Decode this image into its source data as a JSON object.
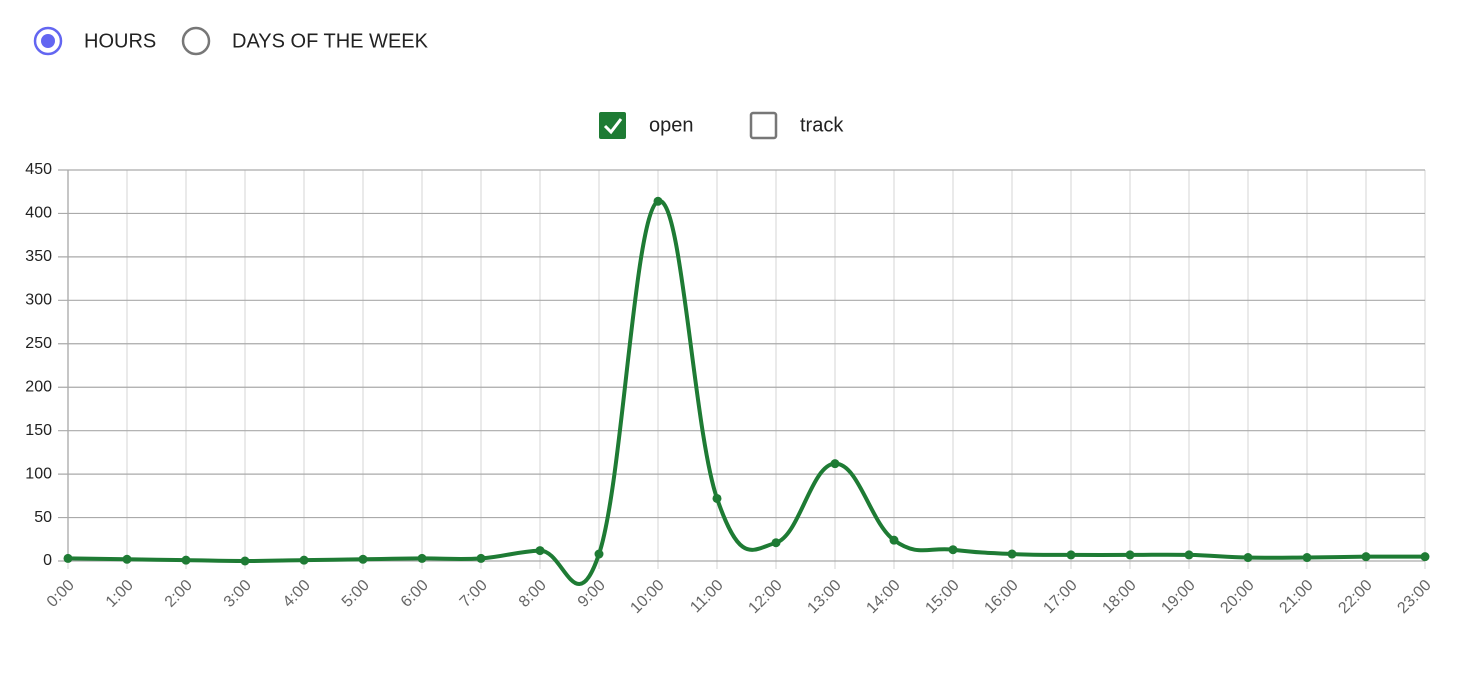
{
  "view_options": [
    {
      "label": "HOURS",
      "selected": true
    },
    {
      "label": "DAYS OF THE WEEK",
      "selected": false
    }
  ],
  "chart_data": {
    "type": "line",
    "categories": [
      "0:00",
      "1:00",
      "2:00",
      "3:00",
      "4:00",
      "5:00",
      "6:00",
      "7:00",
      "8:00",
      "9:00",
      "10:00",
      "11:00",
      "12:00",
      "13:00",
      "14:00",
      "15:00",
      "16:00",
      "17:00",
      "18:00",
      "19:00",
      "20:00",
      "21:00",
      "22:00",
      "23:00"
    ],
    "series": [
      {
        "name": "open",
        "color": "#1e7b34",
        "checked": true,
        "values": [
          3,
          2,
          1,
          0,
          1,
          2,
          3,
          3,
          12,
          8,
          414,
          72,
          21,
          112,
          24,
          13,
          8,
          7,
          7,
          7,
          4,
          4,
          5,
          5
        ]
      },
      {
        "name": "track",
        "checked": false
      }
    ],
    "ylim": [
      0,
      450
    ],
    "yticks": [
      0,
      50,
      100,
      150,
      200,
      250,
      300,
      350,
      400,
      450
    ],
    "grid": true
  }
}
